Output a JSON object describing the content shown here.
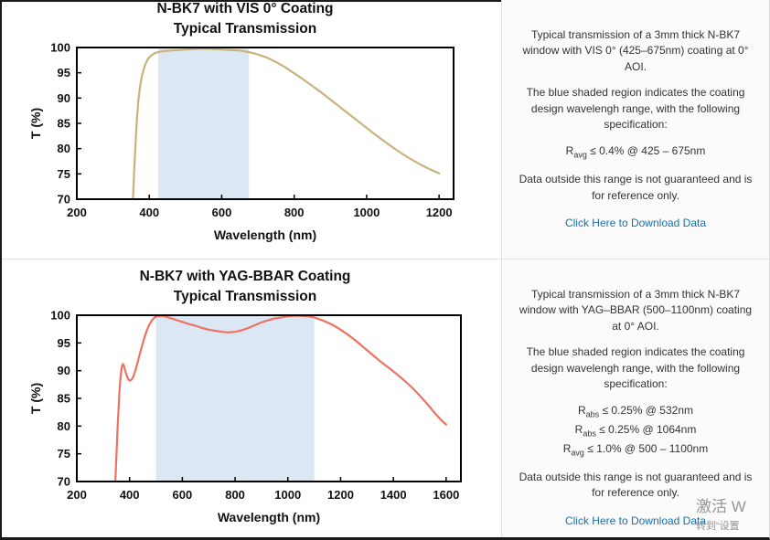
{
  "colors": {
    "link": "#1a6fb0",
    "panel_bg": "#fbfbfb",
    "divider": "#e0e0e0",
    "text": "#333333"
  },
  "page": {
    "panels": [
      {
        "title_line1": "N-BK7 with VIS 0° Coating",
        "title_line2": "Typical Transmission",
        "desc_1": "Typical transmission of a 3mm thick N-BK7 window with VIS 0° (425–675nm) coating at 0° AOI.",
        "desc_2": "The blue shaded region indicates the coating design wavelengh range, with the following specification:",
        "specs": [
          {
            "base": "R",
            "subscript": "avg",
            "rest": "≤ 0.4% @ 425 – 675nm"
          }
        ],
        "desc_3": "Data outside this range is not guaranteed and is for reference only.",
        "download_link": "Click Here to Download Data"
      },
      {
        "title_line1": "N-BK7 with YAG-BBAR Coating",
        "title_line2": "Typical Transmission",
        "desc_1": "Typical transmission of a 3mm thick N-BK7 window with YAG–BBAR (500–1100nm) coating at 0° AOI.",
        "desc_2": "The blue shaded region indicates the coating design wavelengh range, with the following specification:",
        "specs": [
          {
            "base": "R",
            "subscript": "abs",
            "rest": "≤ 0.25% @ 532nm"
          },
          {
            "base": "R",
            "subscript": "abs",
            "rest": "≤ 0.25% @ 1064nm"
          },
          {
            "base": "R",
            "subscript": "avg",
            "rest": "≤ 1.0% @ 500 – 1100nm"
          }
        ],
        "desc_3": "Data outside this range is not guaranteed and is for reference only.",
        "download_link": "Click Here to Download Data"
      }
    ],
    "watermark": {
      "line1": "激活 W",
      "line2": "转到“设置"
    }
  },
  "chart_data": [
    {
      "type": "line",
      "title": "N-BK7 with VIS 0° Coating Typical Transmission",
      "xlabel": "Wavelength (nm)",
      "ylabel": "T (%)",
      "xlim": [
        200,
        1200
      ],
      "ylim": [
        70,
        100
      ],
      "xticks": [
        200,
        400,
        600,
        800,
        1000,
        1200
      ],
      "yticks": [
        70,
        75,
        80,
        85,
        90,
        95,
        100
      ],
      "grid": false,
      "legend": "none",
      "shaded_region": {
        "x_start": 425,
        "x_end": 675,
        "color": "#dbe7f3"
      },
      "line_color": "#c9b27c",
      "series": [
        {
          "name": "Typical Transmission",
          "points": [
            [
              350,
              64
            ],
            [
              355,
              70
            ],
            [
              358,
              75
            ],
            [
              362,
              81
            ],
            [
              366,
              86
            ],
            [
              370,
              89.5
            ],
            [
              375,
              92.5
            ],
            [
              380,
              94.5
            ],
            [
              388,
              96.5
            ],
            [
              396,
              97.7
            ],
            [
              405,
              98.4
            ],
            [
              415,
              98.9
            ],
            [
              425,
              99.1
            ],
            [
              440,
              99.3
            ],
            [
              460,
              99.4
            ],
            [
              480,
              99.5
            ],
            [
              500,
              99.6
            ],
            [
              525,
              99.7
            ],
            [
              550,
              99.8
            ],
            [
              575,
              99.7
            ],
            [
              600,
              99.6
            ],
            [
              625,
              99.5
            ],
            [
              650,
              99.4
            ],
            [
              675,
              99.1
            ],
            [
              700,
              98.6
            ],
            [
              725,
              98.0
            ],
            [
              750,
              97.1
            ],
            [
              775,
              96.1
            ],
            [
              800,
              94.9
            ],
            [
              825,
              93.7
            ],
            [
              850,
              92.4
            ],
            [
              875,
              91.1
            ],
            [
              900,
              89.7
            ],
            [
              925,
              88.3
            ],
            [
              950,
              86.9
            ],
            [
              975,
              85.5
            ],
            [
              1000,
              84.1
            ],
            [
              1025,
              82.7
            ],
            [
              1050,
              81.4
            ],
            [
              1075,
              80.1
            ],
            [
              1100,
              78.9
            ],
            [
              1125,
              77.8
            ],
            [
              1150,
              76.8
            ],
            [
              1175,
              75.9
            ],
            [
              1200,
              75.1
            ]
          ]
        }
      ]
    },
    {
      "type": "line",
      "title": "N-BK7 with YAG-BBAR Coating Typical Transmission",
      "xlabel": "Wavelength (nm)",
      "ylabel": "T (%)",
      "xlim": [
        200,
        1600
      ],
      "ylim": [
        70,
        100
      ],
      "xticks": [
        200,
        400,
        600,
        800,
        1000,
        1200,
        1400,
        1600
      ],
      "yticks": [
        70,
        75,
        80,
        85,
        90,
        95,
        100
      ],
      "grid": false,
      "legend": "none",
      "shaded_region": {
        "x_start": 500,
        "x_end": 1100,
        "color": "#dbe7f3"
      },
      "line_color": "#ee7262",
      "series": [
        {
          "name": "Typical Transmission",
          "points": [
            [
              342,
              64
            ],
            [
              346,
              70
            ],
            [
              350,
              74.5
            ],
            [
              354,
              79
            ],
            [
              358,
              83
            ],
            [
              362,
              86.5
            ],
            [
              366,
              89
            ],
            [
              370,
              90.5
            ],
            [
              374,
              91.2
            ],
            [
              378,
              91.0
            ],
            [
              384,
              89.9
            ],
            [
              390,
              89.0
            ],
            [
              396,
              88.4
            ],
            [
              402,
              88.2
            ],
            [
              408,
              88.4
            ],
            [
              415,
              89.0
            ],
            [
              422,
              90.0
            ],
            [
              430,
              91.4
            ],
            [
              438,
              92.9
            ],
            [
              446,
              94.3
            ],
            [
              455,
              95.8
            ],
            [
              465,
              97.2
            ],
            [
              475,
              98.3
            ],
            [
              485,
              99.1
            ],
            [
              495,
              99.6
            ],
            [
              505,
              99.8
            ],
            [
              520,
              99.9
            ],
            [
              540,
              99.7
            ],
            [
              560,
              99.4
            ],
            [
              580,
              99.1
            ],
            [
              600,
              98.8
            ],
            [
              625,
              98.4
            ],
            [
              650,
              98.1
            ],
            [
              675,
              97.7
            ],
            [
              700,
              97.4
            ],
            [
              725,
              97.2
            ],
            [
              750,
              97.0
            ],
            [
              775,
              96.9
            ],
            [
              800,
              97.0
            ],
            [
              825,
              97.3
            ],
            [
              850,
              97.7
            ],
            [
              875,
              98.2
            ],
            [
              900,
              98.7
            ],
            [
              925,
              99.1
            ],
            [
              950,
              99.4
            ],
            [
              975,
              99.6
            ],
            [
              1000,
              99.8
            ],
            [
              1025,
              99.9
            ],
            [
              1050,
              99.9
            ],
            [
              1075,
              99.8
            ],
            [
              1100,
              99.6
            ],
            [
              1125,
              99.2
            ],
            [
              1150,
              98.7
            ],
            [
              1175,
              98.1
            ],
            [
              1200,
              97.4
            ],
            [
              1230,
              96.4
            ],
            [
              1260,
              95.3
            ],
            [
              1290,
              94.1
            ],
            [
              1320,
              92.9
            ],
            [
              1350,
              91.7
            ],
            [
              1380,
              90.6
            ],
            [
              1410,
              89.5
            ],
            [
              1440,
              88.3
            ],
            [
              1470,
              87.0
            ],
            [
              1500,
              85.5
            ],
            [
              1530,
              83.9
            ],
            [
              1560,
              82.2
            ],
            [
              1585,
              80.9
            ],
            [
              1600,
              80.3
            ]
          ]
        }
      ]
    }
  ]
}
